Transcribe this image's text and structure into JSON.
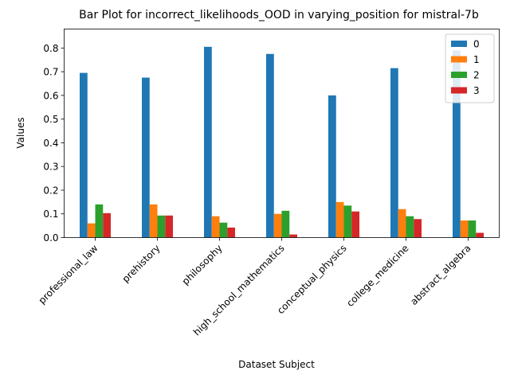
{
  "chart_data": {
    "type": "bar",
    "title": "Bar Plot for incorrect_likelihoods_OOD in varying_position for mistral-7b",
    "xlabel": "Dataset Subject",
    "ylabel": "Values",
    "ylim": [
      0,
      0.88
    ],
    "yticks": [
      "0.0",
      "0.1",
      "0.2",
      "0.3",
      "0.4",
      "0.5",
      "0.6",
      "0.7",
      "0.8"
    ],
    "grid": false,
    "legend_position": "top-right",
    "categories": [
      "professional_law",
      "prehistory",
      "philosophy",
      "high_school_mathematics",
      "conceptual_physics",
      "college_medicine",
      "abstract_algebra"
    ],
    "series": [
      {
        "name": "0",
        "color": "#1f77b4",
        "values": [
          0.695,
          0.675,
          0.805,
          0.775,
          0.6,
          0.715,
          0.79
        ]
      },
      {
        "name": "1",
        "color": "#ff7f0e",
        "values": [
          0.06,
          0.14,
          0.09,
          0.1,
          0.15,
          0.12,
          0.072
        ]
      },
      {
        "name": "2",
        "color": "#2ca02c",
        "values": [
          0.14,
          0.093,
          0.063,
          0.113,
          0.135,
          0.09,
          0.072
        ]
      },
      {
        "name": "3",
        "color": "#d62728",
        "values": [
          0.103,
          0.093,
          0.042,
          0.013,
          0.11,
          0.078,
          0.02
        ]
      }
    ]
  }
}
